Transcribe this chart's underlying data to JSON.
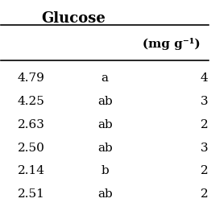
{
  "title": "Glucose",
  "subtitle": "(mg g⁻¹)",
  "col1_values": [
    "4.79",
    "4.25",
    "2.63",
    "2.50",
    "2.14",
    "2.51"
  ],
  "col2_values": [
    "a",
    "ab",
    "ab",
    "ab",
    "b",
    "ab"
  ],
  "col3_values": [
    "4",
    "3",
    "2",
    "3",
    "2",
    "2"
  ],
  "background_color": "#ffffff",
  "text_color": "#000000",
  "line_color": "#000000",
  "title_fontsize": 13,
  "header_fontsize": 11,
  "data_fontsize": 11
}
